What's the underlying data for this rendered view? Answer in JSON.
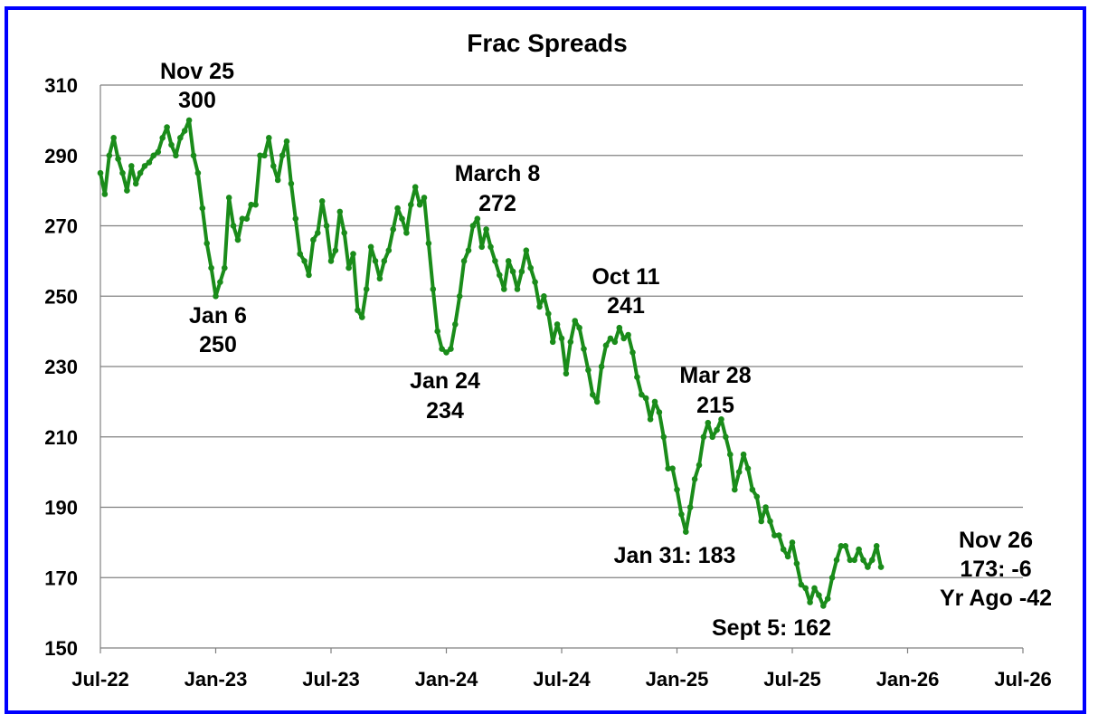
{
  "chart_data": {
    "type": "line",
    "title": "Frac Spreads",
    "xlabel": "",
    "ylabel": "",
    "ylim": [
      150,
      310
    ],
    "yticks": [
      "310",
      "290",
      "270",
      "250",
      "230",
      "210",
      "190",
      "170",
      "150"
    ],
    "xticks": [
      "Jul-22",
      "Jan-23",
      "Jul-23",
      "Jan-24",
      "Jul-24",
      "Jan-25",
      "Jul-25",
      "Jan-26",
      "Jul-26"
    ],
    "grid": true,
    "legend": "none",
    "colors": {
      "line": "#1a8c1a",
      "frame": "#0000ff",
      "grid": "#808080"
    },
    "series": [
      {
        "values": [
          285,
          279,
          290,
          295,
          289,
          285,
          280,
          287,
          282,
          285,
          287,
          288,
          290,
          291,
          295,
          298,
          293,
          290,
          295,
          297,
          300,
          290,
          285,
          275,
          265,
          258,
          250,
          254,
          258,
          278,
          270,
          266,
          272,
          272,
          276,
          276,
          290,
          290,
          295,
          287,
          283,
          290,
          294,
          282,
          272,
          262,
          260,
          256,
          266,
          268,
          277,
          270,
          260,
          263,
          274,
          268,
          258,
          262,
          246,
          244,
          252,
          264,
          260,
          255,
          260,
          263,
          269,
          275,
          272,
          268,
          276,
          281,
          276,
          278,
          265,
          252,
          240,
          235,
          234,
          235,
          242,
          250,
          260,
          263,
          270,
          272,
          264,
          269,
          264,
          260,
          256,
          252,
          260,
          257,
          252,
          257,
          263,
          258,
          254,
          247,
          250,
          245,
          237,
          242,
          238,
          228,
          237,
          243,
          241,
          235,
          229,
          222,
          220,
          230,
          236,
          238,
          237,
          241,
          238,
          239,
          234,
          227,
          222,
          221,
          215,
          220,
          217,
          210,
          201,
          201,
          195,
          188,
          183,
          190,
          198,
          202,
          210,
          214,
          210,
          212,
          215,
          210,
          205,
          195,
          200,
          205,
          201,
          195,
          193,
          186,
          190,
          186,
          182,
          182,
          178,
          176,
          180,
          174,
          168,
          167,
          163,
          167,
          165,
          162,
          164,
          170,
          175,
          179,
          179,
          175,
          175,
          178,
          175,
          173,
          175,
          179,
          173
        ]
      }
    ],
    "annotations": [
      {
        "line1": "Nov 25",
        "line2": "300"
      },
      {
        "line1": "Jan 6",
        "line2": "250"
      },
      {
        "line1": "March 8",
        "line2": "272"
      },
      {
        "line1": "Jan 24",
        "line2": "234"
      },
      {
        "line1": "Oct 11",
        "line2": "241"
      },
      {
        "line1": "Mar 28",
        "line2": "215"
      },
      {
        "line1": "Jan 31: 183",
        "line2": ""
      },
      {
        "line1": "Sept 5: 162",
        "line2": ""
      },
      {
        "line1": "Nov 26",
        "line2": "173: -6",
        "line3": "Yr Ago -42"
      }
    ]
  }
}
